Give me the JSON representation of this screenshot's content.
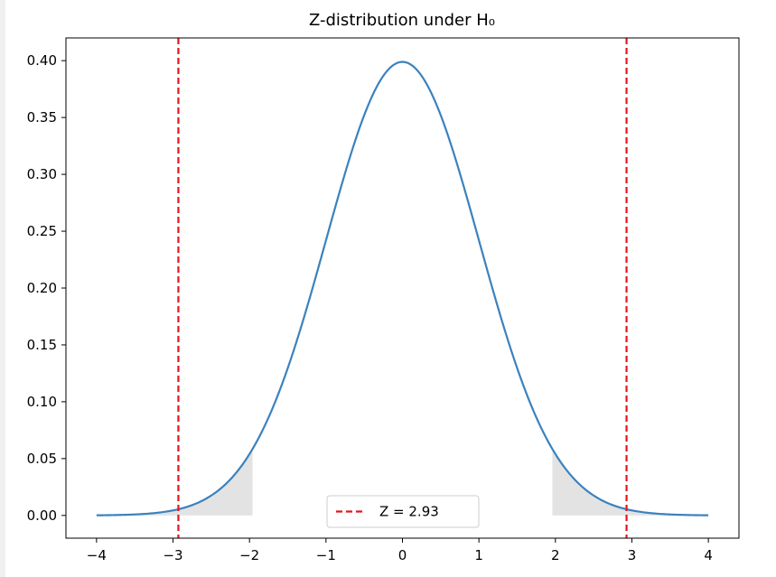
{
  "chart_data": {
    "type": "line",
    "title": "Z-distribution under H₀",
    "xlabel": "",
    "ylabel": "",
    "xlim": [
      -4.4,
      4.4
    ],
    "ylim": [
      -0.02,
      0.42
    ],
    "x_ticks": [
      -4,
      -3,
      -2,
      -1,
      0,
      1,
      2,
      3,
      4
    ],
    "x_tick_labels": [
      "−4",
      "−3",
      "−2",
      "−1",
      "0",
      "1",
      "2",
      "3",
      "4"
    ],
    "y_ticks": [
      0.0,
      0.05,
      0.1,
      0.15,
      0.2,
      0.25,
      0.3,
      0.35,
      0.4
    ],
    "y_tick_labels": [
      "0.00",
      "0.05",
      "0.10",
      "0.15",
      "0.20",
      "0.25",
      "0.30",
      "0.35",
      "0.40"
    ],
    "series": [
      {
        "kind": "line",
        "function": "standard normal pdf",
        "x": [
          -4,
          -3.5,
          -3,
          -2.5,
          -2,
          -1.5,
          -1,
          -0.5,
          0,
          0.5,
          1,
          1.5,
          2,
          2.5,
          3,
          3.5,
          4
        ],
        "y": [
          0.0001,
          0.0009,
          0.0044,
          0.0175,
          0.054,
          0.1295,
          0.242,
          0.3521,
          0.3989,
          0.3521,
          0.242,
          0.1295,
          0.054,
          0.0175,
          0.0044,
          0.0009,
          0.0001
        ],
        "color": "#3b82be"
      }
    ],
    "shaded_regions": [
      {
        "from": -4,
        "to": -1.96,
        "color": "#e3e3e3"
      },
      {
        "from": 1.96,
        "to": 4,
        "color": "#e3e3e3"
      }
    ],
    "vlines": [
      {
        "x": -2.93,
        "color": "#e8141e",
        "style": "dashed"
      },
      {
        "x": 2.93,
        "color": "#e8141e",
        "style": "dashed"
      }
    ],
    "legend": {
      "position": "lower-center",
      "entries": [
        {
          "label": "Z = 2.93",
          "color": "#e8141e",
          "style": "dashed"
        }
      ]
    },
    "grid": false
  }
}
